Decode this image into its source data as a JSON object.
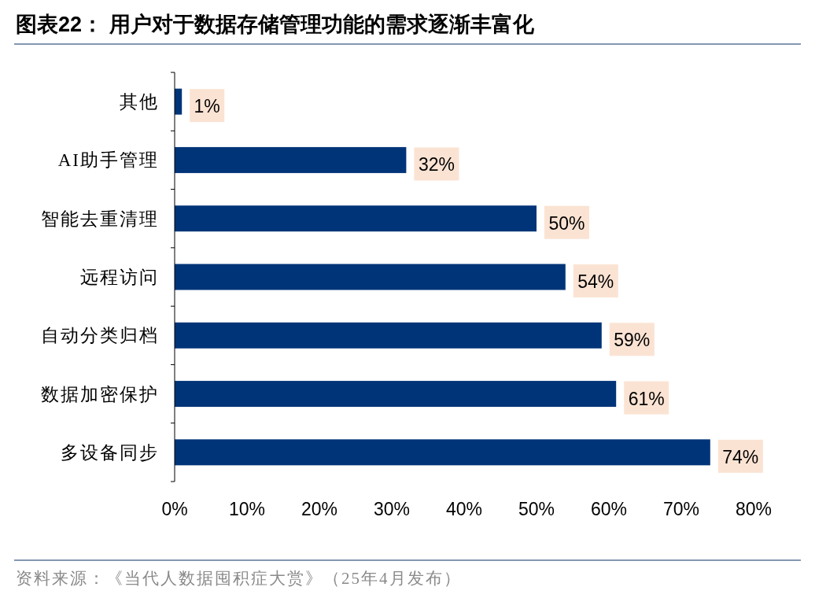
{
  "chart_data": {
    "type": "bar",
    "orientation": "horizontal",
    "title": "图表22：  用户对于数据存储管理功能的需求逐渐丰富化",
    "categories": [
      "其他",
      "AI助手管理",
      "智能去重清理",
      "远程访问",
      "自动分类归档",
      "数据加密保护",
      "多设备同步"
    ],
    "values": [
      1,
      32,
      50,
      54,
      59,
      61,
      74
    ],
    "value_labels": [
      "1%",
      "32%",
      "50%",
      "54%",
      "59%",
      "61%",
      "74%"
    ],
    "color": "#003478",
    "xlim": [
      0,
      80
    ],
    "xticks": [
      {
        "value": 0,
        "label": "0%"
      },
      {
        "value": 10,
        "label": "10%"
      },
      {
        "value": 20,
        "label": "20%"
      },
      {
        "value": 30,
        "label": "30%"
      },
      {
        "value": 40,
        "label": "40%"
      },
      {
        "value": 50,
        "label": "50%"
      },
      {
        "value": 60,
        "label": "60%"
      },
      {
        "value": 70,
        "label": "70%"
      },
      {
        "value": 80,
        "label": "80%"
      }
    ],
    "annotations": [
      "资料来源：《当代人数据囤积症大赏》（25年4月发布）"
    ]
  }
}
